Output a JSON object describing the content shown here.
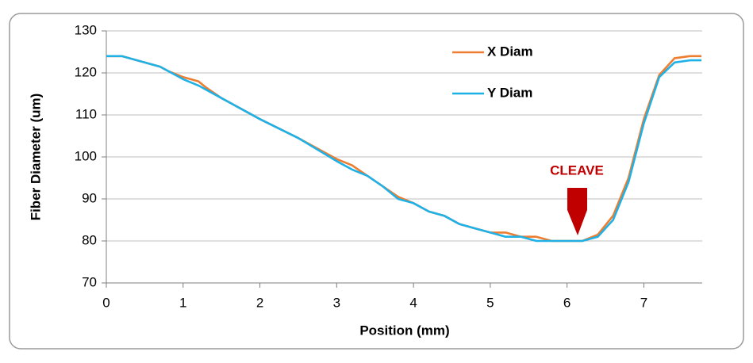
{
  "chart_data": {
    "type": "line",
    "xlabel": "Position (mm)",
    "ylabel": "Fiber Diameter (um)",
    "x": [
      0,
      0.2,
      0.4,
      0.7,
      0.8,
      1.0,
      1.2,
      1.3,
      1.5,
      2.0,
      2.5,
      3.0,
      3.2,
      3.4,
      3.6,
      3.8,
      4.0,
      4.2,
      4.4,
      4.6,
      4.8,
      5.0,
      5.2,
      5.4,
      5.6,
      5.8,
      6.0,
      6.2,
      6.4,
      6.6,
      6.8,
      7.0,
      7.2,
      7.4,
      7.6,
      7.75
    ],
    "series": [
      {
        "name": "X Diam",
        "color": "#ed7d31",
        "values": [
          124,
          124,
          123,
          121.5,
          120.5,
          119,
          118,
          116.5,
          114,
          109,
          104.5,
          99.5,
          98,
          95.5,
          93,
          90.5,
          89,
          87,
          86,
          84,
          83,
          82,
          82,
          81,
          81,
          80,
          80,
          80,
          81.5,
          86,
          95,
          109,
          119.5,
          123.5,
          124,
          124
        ]
      },
      {
        "name": "Y Diam",
        "color": "#1fb1e6",
        "values": [
          124,
          124,
          123,
          121.5,
          120.5,
          118.5,
          117,
          116,
          114,
          109,
          104.5,
          99,
          97,
          95.5,
          93,
          90,
          89,
          87,
          86,
          84,
          83,
          82,
          81,
          81,
          80,
          80,
          80,
          80,
          81,
          85,
          94,
          108,
          119,
          122.5,
          123,
          123
        ]
      }
    ],
    "annotations": [
      "CLEAVE"
    ],
    "xlim": [
      0,
      7.76
    ],
    "xticks": [
      0,
      1,
      2,
      3,
      4,
      5,
      6,
      7
    ],
    "ylim": [
      70,
      130
    ],
    "yticks": [
      70,
      80,
      90,
      100,
      110,
      120,
      130
    ],
    "grid": true,
    "legend": "upper center"
  }
}
